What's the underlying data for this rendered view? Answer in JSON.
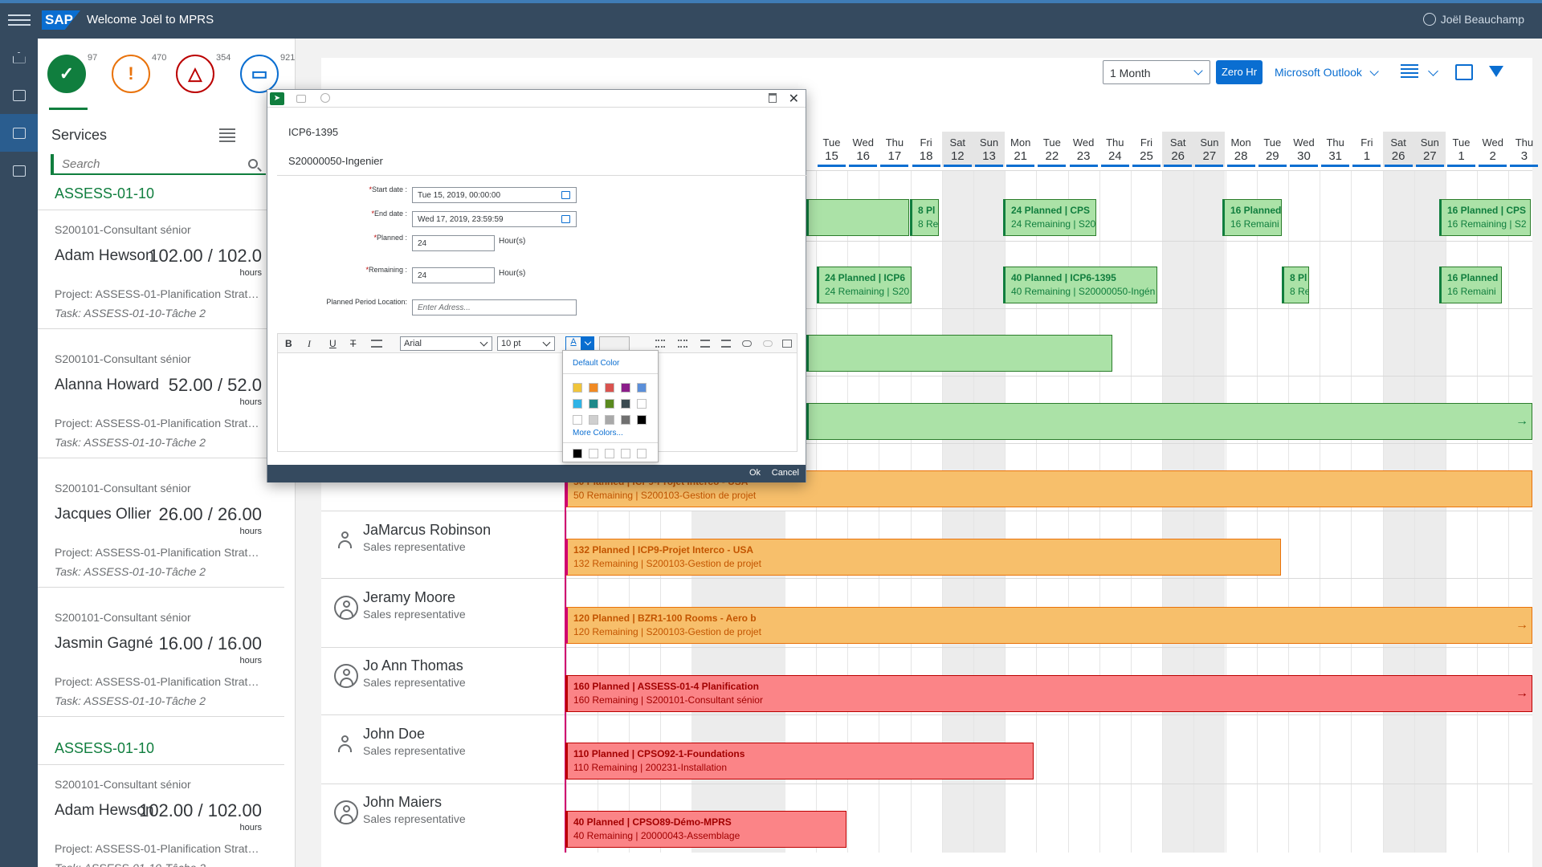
{
  "shell": {
    "title": "Welcome Joël to MPRS",
    "logo": "SAP",
    "user_name": "Joël Beauchamp"
  },
  "kpis": [
    {
      "icon": "clipboard-check-icon",
      "count": "97",
      "color": "#107e3e"
    },
    {
      "icon": "warning-exclamation-icon",
      "count": "470",
      "color": "#e9730c"
    },
    {
      "icon": "alert-triangle-icon",
      "count": "354",
      "color": "#bb0000"
    },
    {
      "icon": "notebook-icon",
      "count": "921",
      "color": "#0a6ed1"
    }
  ],
  "services": {
    "title": "Services",
    "search_placeholder": "Search",
    "groups": [
      {
        "header": "ASSESS-01-10",
        "cards": [
          {
            "role": "S200101-Consultant sénior",
            "name": "Adam Hewson",
            "hours": "102.00 / 102.0",
            "unit": "hours",
            "project": "Project: ASSESS-01-Planification Stratégi...",
            "task": "Task: ASSESS-01-10-Tâche 2"
          },
          {
            "role": "S200101-Consultant sénior",
            "name": "Alanna Howard",
            "hours": "52.00 / 52.0",
            "unit": "hours",
            "project": "Project: ASSESS-01-Planification Stratégi...",
            "task": "Task: ASSESS-01-10-Tâche 2"
          },
          {
            "role": "S200101-Consultant sénior",
            "name": "Jacques Ollier",
            "hours": "26.00 / 26.00",
            "unit": "hours",
            "project": "Project: ASSESS-01-Planification Stratégi...",
            "task": "Task: ASSESS-01-10-Tâche 2"
          },
          {
            "role": "S200101-Consultant sénior",
            "name": "Jasmin Gagné",
            "hours": "16.00 / 16.00",
            "unit": "hours",
            "project": "Project: ASSESS-01-Planification Stratégi...",
            "task": "Task: ASSESS-01-10-Tâche 2"
          }
        ]
      },
      {
        "header": "ASSESS-01-10",
        "cards": [
          {
            "role": "S200101-Consultant sénior",
            "name": "Adam Hewson",
            "hours": "102.00 / 102.00",
            "unit": "hours",
            "project": "Project: ASSESS-01-Planification Stratégi...",
            "task": "Task: ASSESS-01-10-Tâche 2"
          }
        ]
      }
    ]
  },
  "toolbar": {
    "period": "1 Month",
    "zero_hr": "Zero Hr",
    "outlook": "Microsoft Outlook"
  },
  "days": [
    {
      "dow": "Tue",
      "num": "15",
      "weekend": false
    },
    {
      "dow": "Wed",
      "num": "16",
      "weekend": false
    },
    {
      "dow": "Thu",
      "num": "17",
      "weekend": false
    },
    {
      "dow": "Fri",
      "num": "18",
      "weekend": false
    },
    {
      "dow": "Sat",
      "num": "12",
      "weekend": true
    },
    {
      "dow": "Sun",
      "num": "13",
      "weekend": true
    },
    {
      "dow": "Mon",
      "num": "21",
      "weekend": false
    },
    {
      "dow": "Tue",
      "num": "22",
      "weekend": false
    },
    {
      "dow": "Wed",
      "num": "23",
      "weekend": false
    },
    {
      "dow": "Thu",
      "num": "24",
      "weekend": false
    },
    {
      "dow": "Fri",
      "num": "25",
      "weekend": false
    },
    {
      "dow": "Sat",
      "num": "26",
      "weekend": true
    },
    {
      "dow": "Sun",
      "num": "27",
      "weekend": true
    },
    {
      "dow": "Mon",
      "num": "28",
      "weekend": false
    },
    {
      "dow": "Tue",
      "num": "29",
      "weekend": false
    },
    {
      "dow": "Wed",
      "num": "30",
      "weekend": false
    },
    {
      "dow": "Thu",
      "num": "31",
      "weekend": false
    },
    {
      "dow": "Fri",
      "num": "1",
      "weekend": false
    },
    {
      "dow": "Sat",
      "num": "26",
      "weekend": true
    },
    {
      "dow": "Sun",
      "num": "27",
      "weekend": true
    },
    {
      "dow": "Tue",
      "num": "1",
      "weekend": false
    },
    {
      "dow": "Wed",
      "num": "2",
      "weekend": false
    },
    {
      "dow": "Thu",
      "num": "3",
      "weekend": false
    }
  ],
  "resources": [
    {
      "name": "JaMarcus Robinson",
      "role": "Sales representative",
      "avatar": "person-icon"
    },
    {
      "name": "Jeramy Moore",
      "role": "Sales representative",
      "avatar": "person-circle-icon"
    },
    {
      "name": "Jo Ann Thomas",
      "role": "Sales representative",
      "avatar": "person-circle-icon"
    },
    {
      "name": "John Doe",
      "role": "Sales representative",
      "avatar": "person-icon"
    },
    {
      "name": "John Maiers",
      "role": "Sales representative",
      "avatar": "person-circle-icon"
    }
  ],
  "events": [
    {
      "l1": "",
      "l2": "",
      "color": "green"
    },
    {
      "l1": "8 Pl",
      "l2": "8 Re",
      "color": "green"
    },
    {
      "l1": "24 Planned | CPS",
      "l2": "24 Remaining | S20",
      "color": "green"
    },
    {
      "l1": "16 Planned",
      "l2": "16 Remaini",
      "color": "green"
    },
    {
      "l1": "16 Planned | CPS",
      "l2": "16 Remaining | S2",
      "color": "green"
    },
    {
      "l1": "24 Planned | ICP6",
      "l2": "24 Remaining | S20",
      "color": "green"
    },
    {
      "l1": "40 Planned | ICP6-1395",
      "l2": "40 Remaining | S20000050-Ingén",
      "color": "green"
    },
    {
      "l1": "8 Pl",
      "l2": "8 Re",
      "color": "green"
    },
    {
      "l1": "16 Planned",
      "l2": "16 Remaini",
      "color": "green"
    },
    {
      "l1": "",
      "l2": "",
      "color": "green"
    },
    {
      "l1": "",
      "l2": "",
      "color": "green",
      "arrow": "→"
    },
    {
      "l1": "50 Planned | ICP9-Projet Interco - USA",
      "l2": "50 Remaining | S200103-Gestion de projet",
      "color": "orange"
    },
    {
      "l1": "132 Planned | ICP9-Projet Interco - USA",
      "l2": "132 Remaining | S200103-Gestion de projet",
      "color": "orange"
    },
    {
      "l1": "120 Planned | BZR1-100 Rooms - Aero b",
      "l2": "120 Remaining | S200103-Gestion de projet",
      "color": "orange",
      "arrow": "→"
    },
    {
      "l1": "160 Planned | ASSESS-01-4 Planification",
      "l2": "160 Remaining | S200101-Consultant sénior",
      "color": "red",
      "arrow": "→"
    },
    {
      "l1": "110 Planned | CPSO92-1-Foundations",
      "l2": "110 Remaining | 200231-Installation",
      "color": "red"
    },
    {
      "l1": "40 Planned | CPSO89-Démo-MPRS",
      "l2": "40 Remaining | 20000043-Assemblage",
      "color": "red"
    }
  ],
  "dialog": {
    "id": "ICP6-1395",
    "service": "S20000050-Ingenier",
    "start_label": "Start date :",
    "start_value": "Tue 15, 2019, 00:00:00",
    "end_label": "End date :",
    "end_value": "Wed 17, 2019, 23:59:59",
    "planned_label": "Planned :",
    "planned_value": "24",
    "remaining_label": "Remaining :",
    "remaining_value": "24",
    "unit": "Hour(s)",
    "location_label": "Planned Period Location:",
    "location_placeholder": "Enter Adress...",
    "required_mark": "*",
    "rte": {
      "bold": "B",
      "italic": "I",
      "underline": "U",
      "strike": "T",
      "font": "Arial",
      "size": "10 pt",
      "text_color": "A"
    },
    "color_picker": {
      "default": "Default Color",
      "more": "More Colors...",
      "swatches": [
        "#f0c53b",
        "#f08a24",
        "#d9534f",
        "#8b1e8a",
        "#5b8fd9",
        "#2fb3e6",
        "#1f8a8a",
        "#5a8a1f",
        "#3a4a50",
        "#ffffff",
        "#ffffff",
        "#cfcfcf",
        "#a9a9a9",
        "#707070",
        "#000000"
      ],
      "recent": [
        "#000000",
        "#ffffff",
        "#ffffff",
        "#ffffff",
        "#ffffff"
      ]
    },
    "ok": "Ok",
    "cancel": "Cancel"
  }
}
